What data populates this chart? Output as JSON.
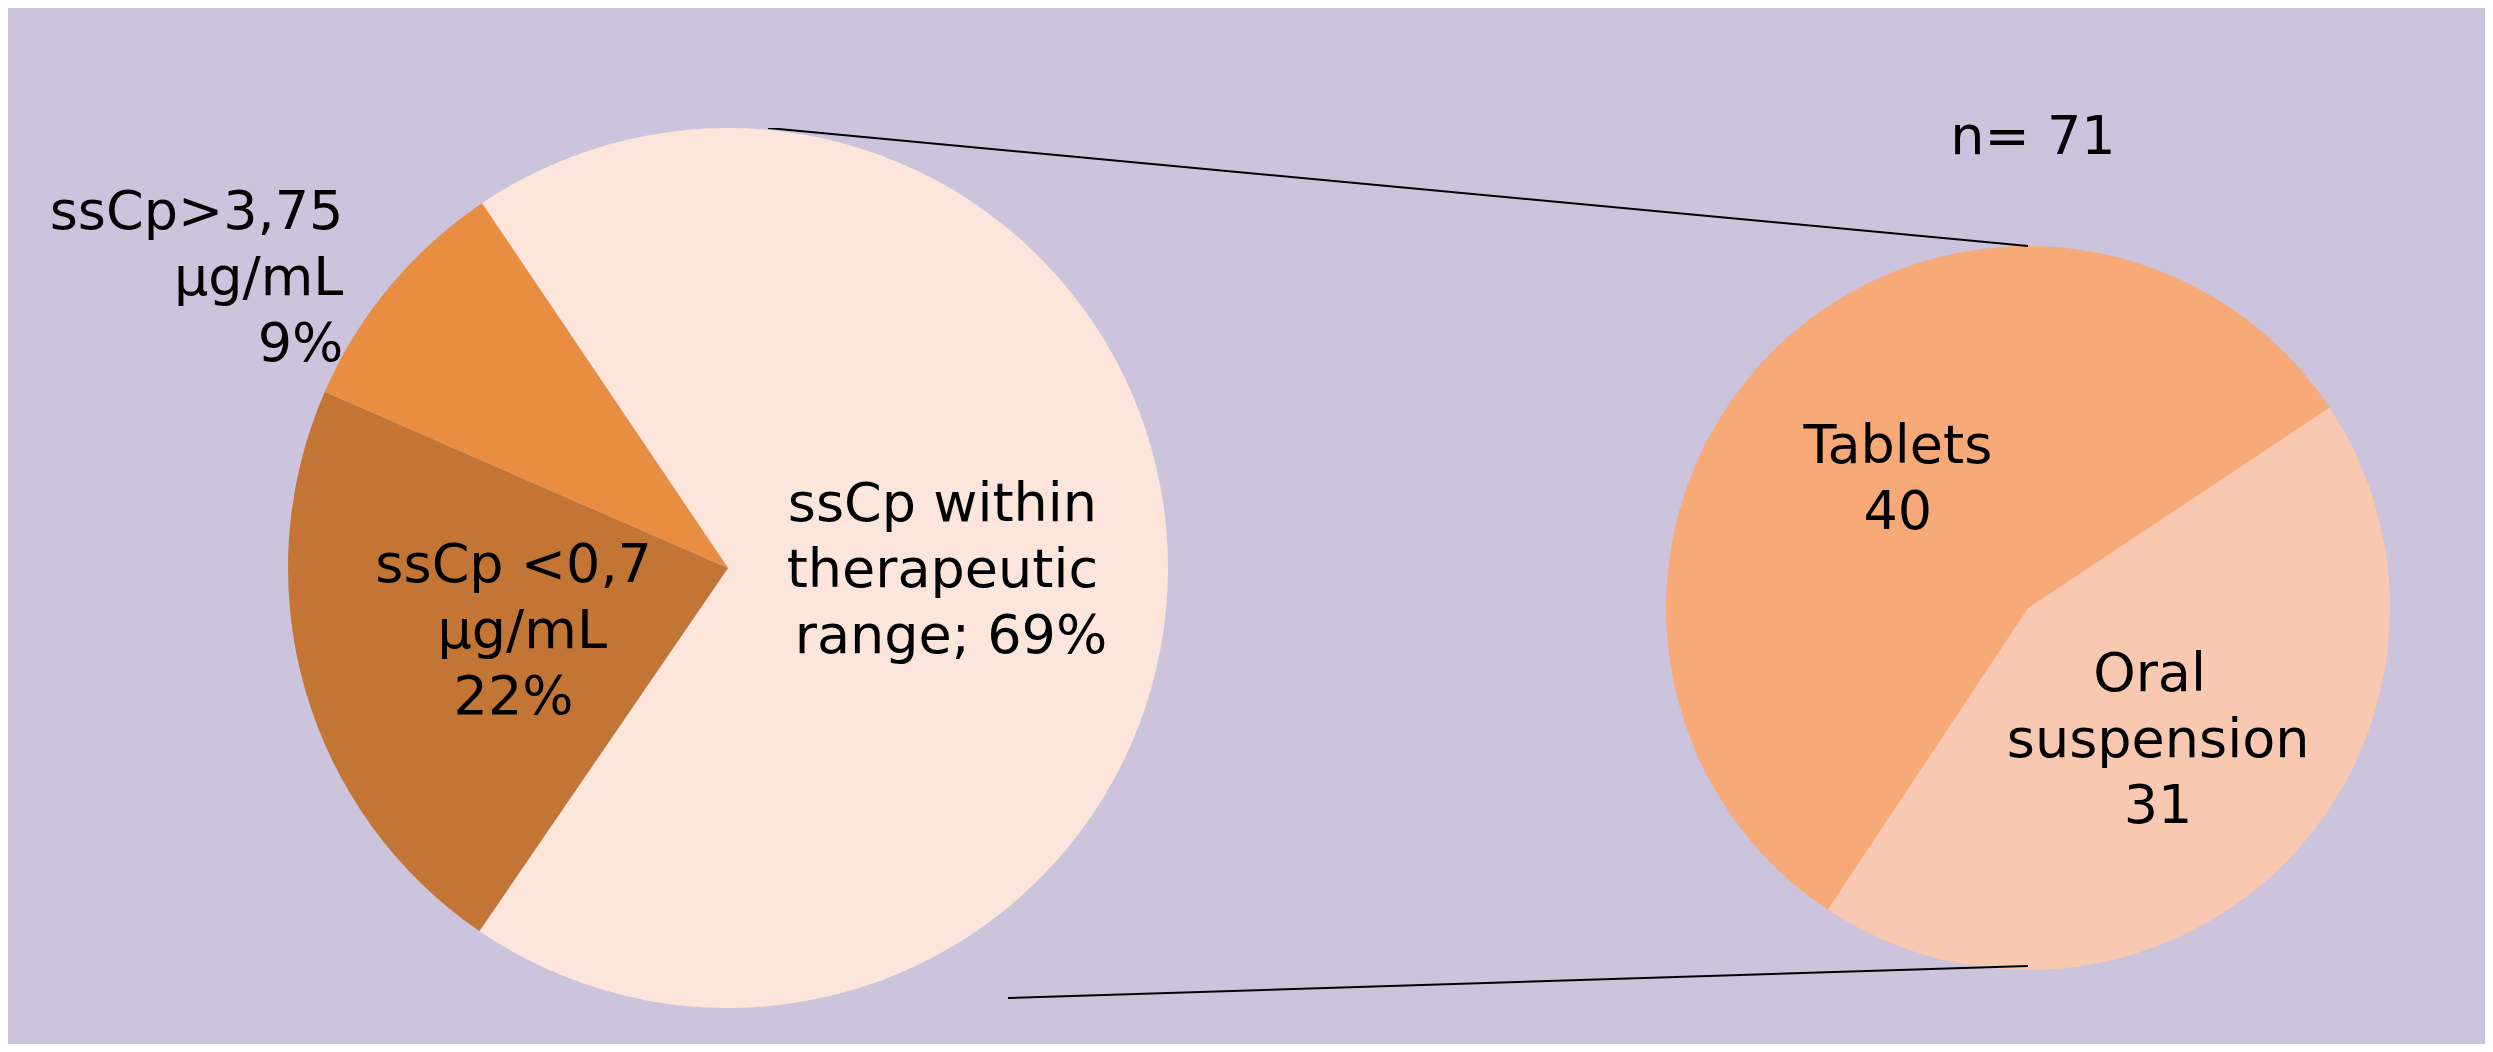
{
  "chart_data": [
    {
      "type": "pie",
      "categories": [
        "ssCp within therapeutic range",
        "ssCp <0,7 µg/mL",
        "ssCp>3,75 µg/mL"
      ],
      "values": [
        69,
        22,
        9
      ],
      "value_labels": [
        "69%",
        "22%",
        "9%"
      ],
      "colors": [
        "#fce6dc",
        "#c37535",
        "#e88d42"
      ]
    },
    {
      "type": "pie",
      "title": "n= 71",
      "categories": [
        "Oral suspension",
        "Tablets"
      ],
      "values": [
        31,
        40
      ],
      "data_labels": true,
      "colors": [
        "#f8c9b0",
        "#f7a978"
      ]
    }
  ]
}
